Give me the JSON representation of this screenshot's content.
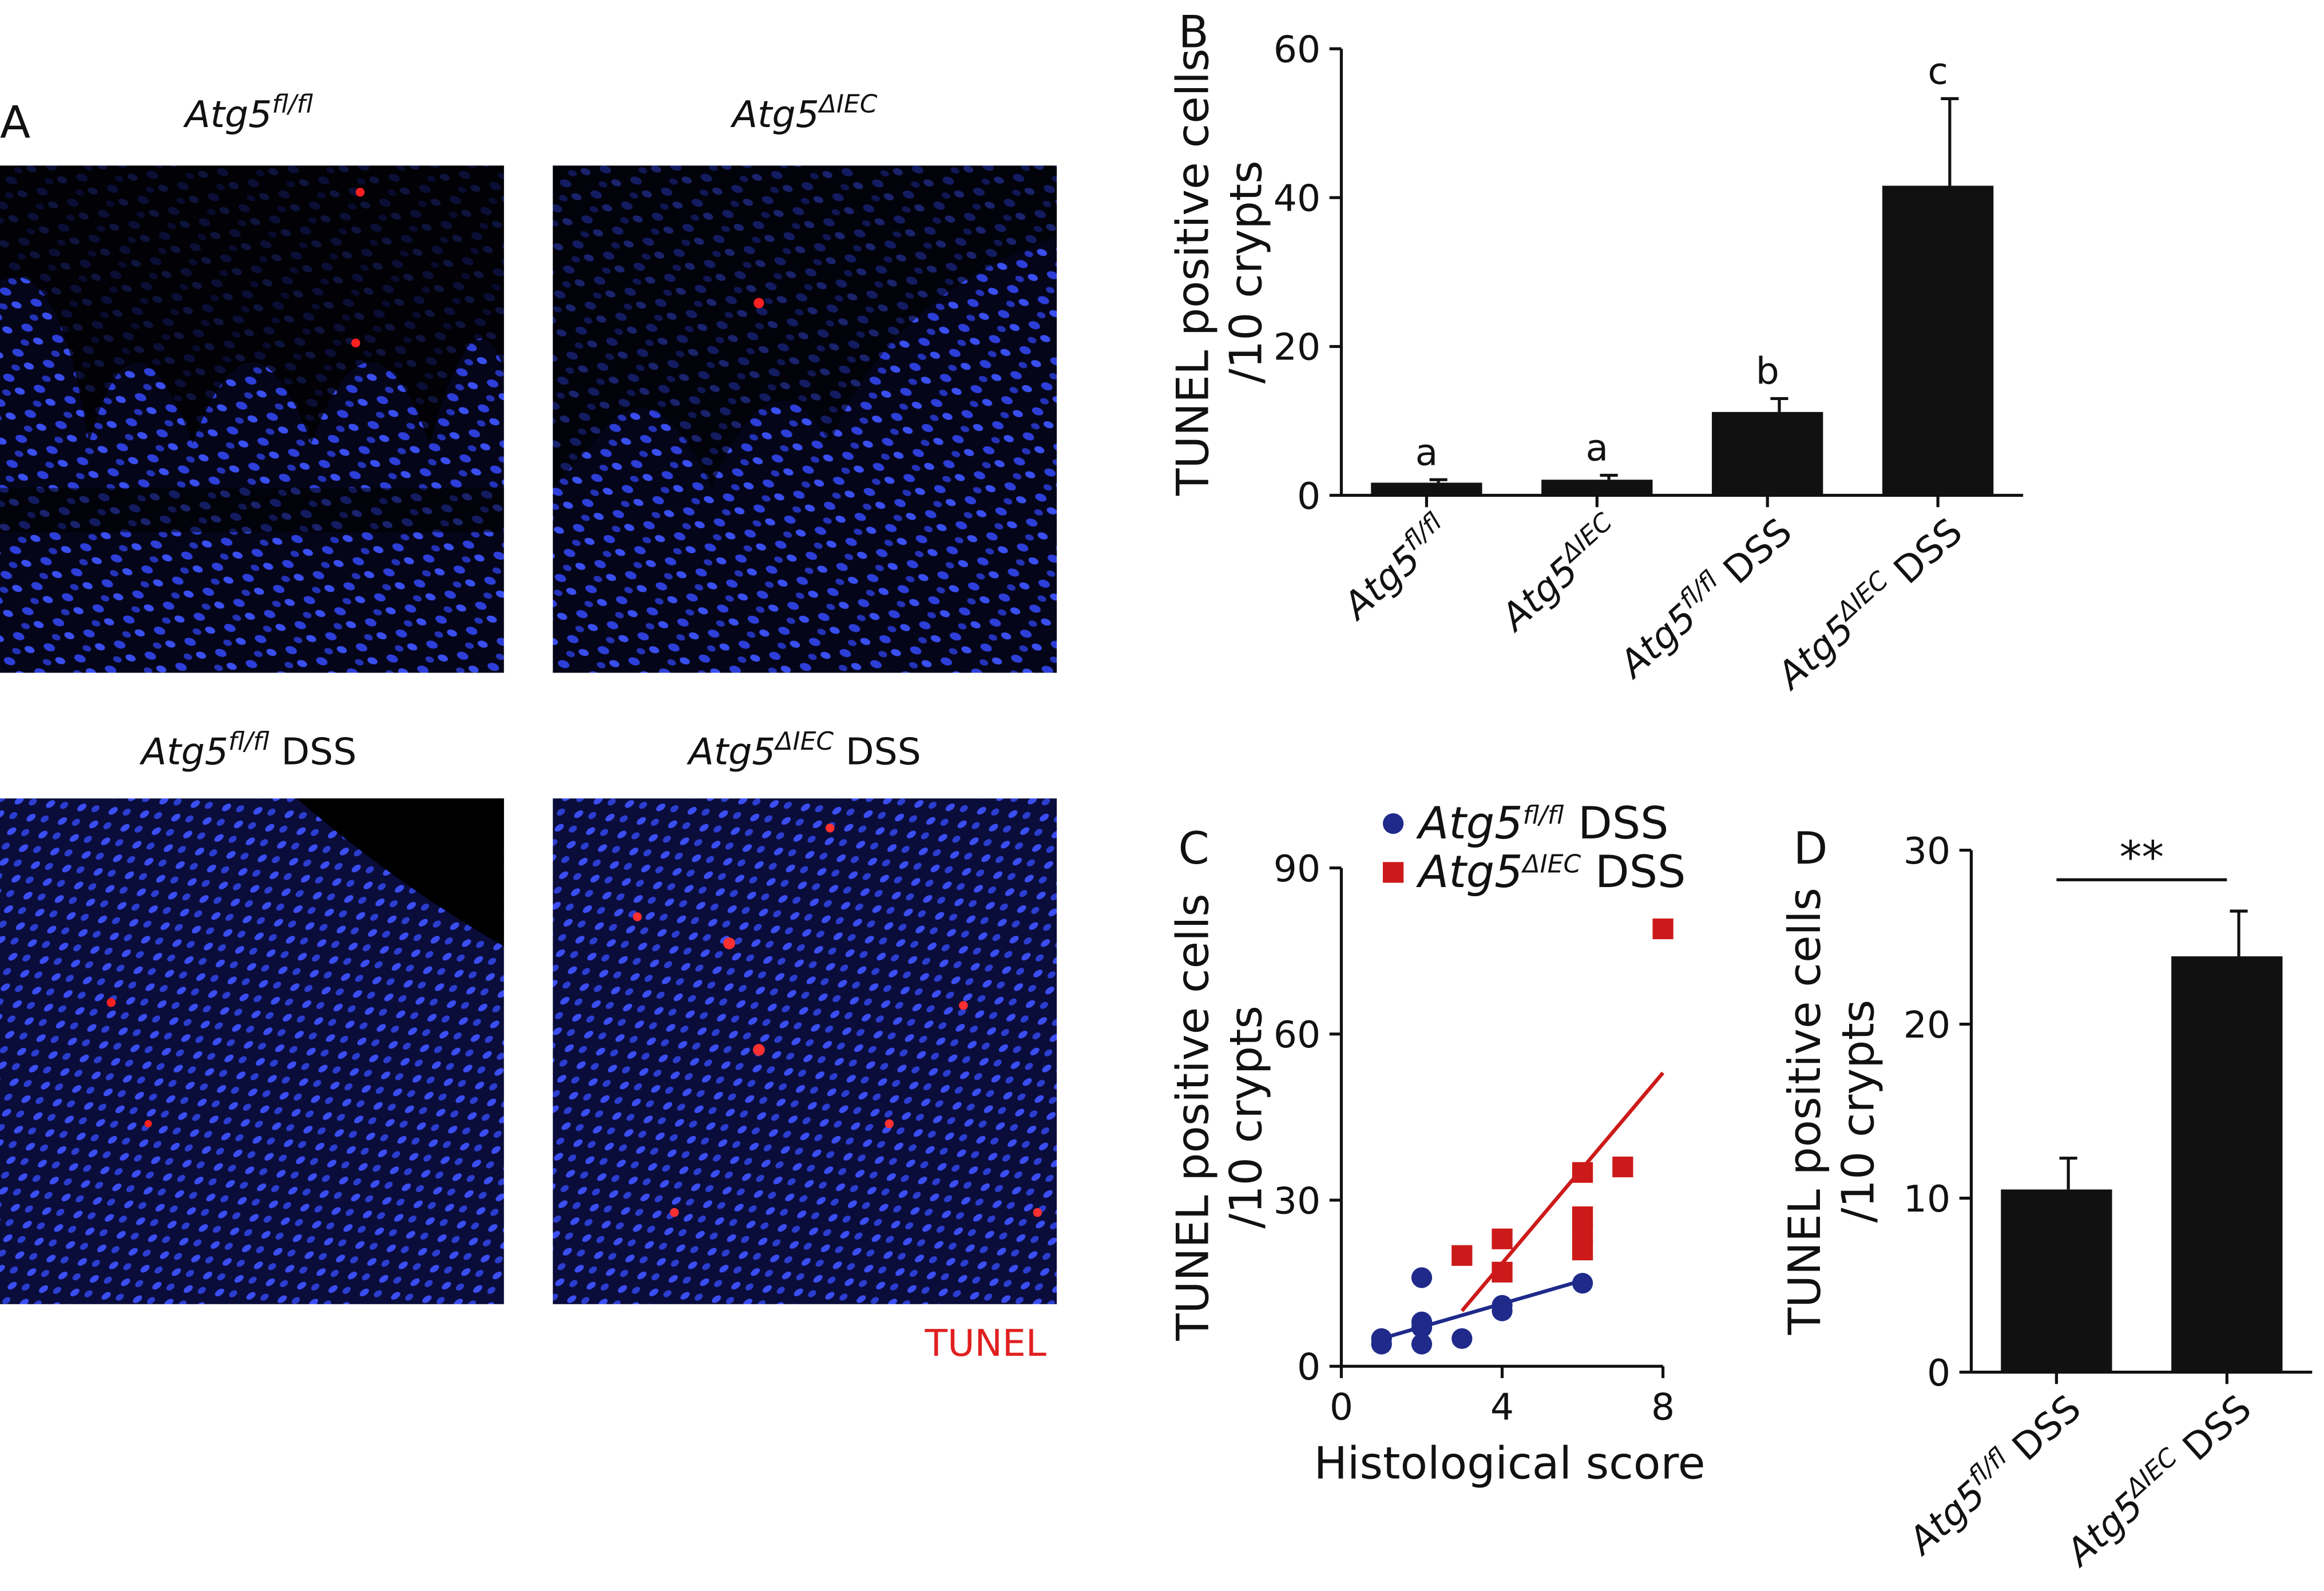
{
  "panel_a": {
    "label": "A",
    "images": [
      "Atg5fl/fl",
      "Atg5ΔIEC",
      "Atg5fl/fl DSS",
      "Atg5ΔIEC DSS"
    ],
    "legend": "TUNEL"
  },
  "chart_data": [
    {
      "type": "bar",
      "panel_label": "B",
      "y_label": [
        "TUNEL positive cells",
        "/10 crypts"
      ],
      "categories": [
        "Atg5fl/fl",
        "Atg5ΔIEC",
        "Atg5fl/fl DSS",
        "Atg5ΔIEC DSS"
      ],
      "values": [
        1.7,
        2.1,
        11.2,
        41.6
      ],
      "errors": [
        0.4,
        0.6,
        1.8,
        11.7
      ],
      "annotations": [
        "a",
        "a",
        "b",
        "c"
      ],
      "color": "#111111",
      "ylim": [
        0,
        60
      ],
      "yticks": [
        0,
        20,
        40,
        60
      ]
    },
    {
      "type": "scatter",
      "panel_label": "C",
      "x_label": "Histological score",
      "y_label": [
        "TUNEL positive cells",
        "/10 crypts"
      ],
      "series": [
        {
          "name": "Atg5fl/fl DSS",
          "color": "#1f2a8a",
          "marker": "circle",
          "x": [
            1,
            1,
            2,
            2,
            2,
            2,
            3,
            4,
            4,
            6
          ],
          "y": [
            4,
            5,
            16,
            8,
            7,
            4,
            5,
            10,
            11,
            15
          ],
          "fit": {
            "x": [
              1,
              6
            ],
            "y": [
              5,
              15.5
            ]
          }
        },
        {
          "name": "Atg5ΔIEC DSS",
          "color": "#cc1a1a",
          "marker": "square",
          "x": [
            3,
            4,
            4,
            6,
            6,
            6,
            6,
            7,
            8
          ],
          "y": [
            20,
            23,
            17,
            35,
            27,
            24,
            21,
            36,
            79
          ],
          "fit": {
            "x": [
              3,
              8
            ],
            "y": [
              10,
              53
            ]
          }
        }
      ],
      "xlim": [
        0,
        8
      ],
      "xticks": [
        0,
        4,
        8
      ],
      "ylim": [
        0,
        90
      ],
      "yticks": [
        0,
        30,
        60,
        90
      ]
    },
    {
      "type": "bar",
      "panel_label": "D",
      "y_label": [
        "TUNEL positive cells",
        "/10 crypts"
      ],
      "categories": [
        "Atg5fl/fl DSS",
        "Atg5ΔIEC DSS"
      ],
      "values": [
        10.5,
        23.9
      ],
      "errors": [
        1.8,
        2.6
      ],
      "significance": "**",
      "color": "#111111",
      "ylim": [
        0,
        30
      ],
      "yticks": [
        0,
        10,
        20,
        30
      ]
    }
  ]
}
